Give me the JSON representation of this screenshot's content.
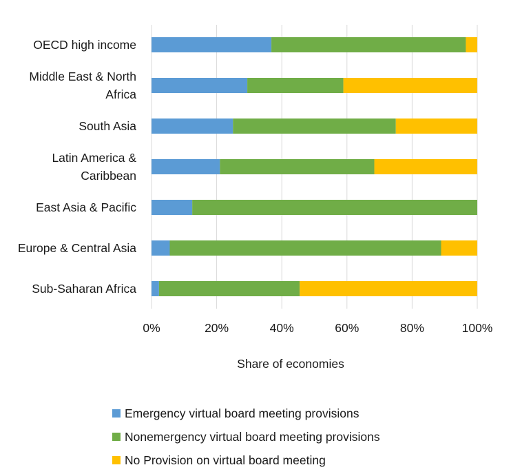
{
  "chart_data": {
    "type": "bar",
    "orientation": "horizontal",
    "stacked": true,
    "categories": [
      "OECD high income",
      "Middle East & North Africa",
      "South Asia",
      "Latin America & Caribbean",
      "East Asia & Pacific",
      "Europe & Central Asia",
      "Sub-Saharan Africa"
    ],
    "category_label_lines": [
      [
        "OECD high income"
      ],
      [
        "Middle East & North",
        "Africa"
      ],
      [
        "South Asia"
      ],
      [
        "Latin America &",
        "Caribbean"
      ],
      [
        "East Asia & Pacific"
      ],
      [
        "Europe & Central Asia"
      ],
      [
        "Sub-Saharan Africa"
      ]
    ],
    "series": [
      {
        "name": "Emergency virtual board meeting provisions",
        "color": "#5b9bd5",
        "values": [
          36.8,
          29.4,
          25.0,
          21.0,
          12.5,
          5.6,
          2.3
        ]
      },
      {
        "name": "Nonemergency virtual board meeting provisions",
        "color": "#70ad47",
        "values": [
          59.7,
          29.5,
          50.0,
          47.4,
          87.5,
          83.3,
          43.2
        ]
      },
      {
        "name": "No Provision on virtual board meeting",
        "color": "#ffc000",
        "values": [
          3.5,
          41.1,
          25.0,
          31.6,
          0.0,
          11.1,
          54.5
        ]
      }
    ],
    "xlabel": "Share of economies",
    "ylabel": "",
    "xlim": [
      0,
      100
    ],
    "ticks": [
      "0%",
      "20%",
      "40%",
      "60%",
      "80%",
      "100%"
    ],
    "tick_values": [
      0,
      20,
      40,
      60,
      80,
      100
    ],
    "grid": true,
    "legend_position": "bottom"
  }
}
